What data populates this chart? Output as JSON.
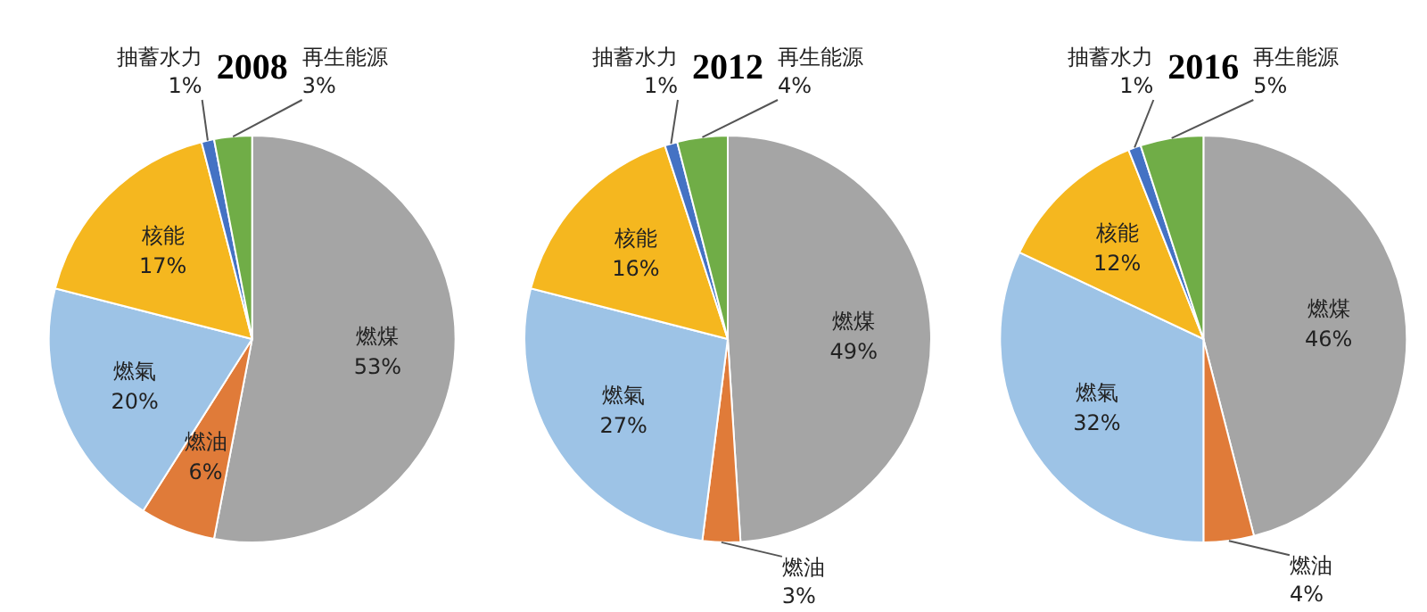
{
  "chart_data": [
    {
      "type": "pie",
      "title": "2008",
      "categories": [
        "燃煤",
        "燃油",
        "燃氣",
        "核能",
        "抽蓄水力",
        "再生能源"
      ],
      "values": [
        53,
        6,
        20,
        17,
        1,
        3
      ],
      "value_labels": [
        "53%",
        "6%",
        "20%",
        "17%",
        "1%",
        "3%"
      ],
      "colors": [
        "#a5a5a5",
        "#e07b39",
        "#9dc3e6",
        "#f5b71f",
        "#4472c4",
        "#70ad47"
      ]
    },
    {
      "type": "pie",
      "title": "2012",
      "categories": [
        "燃煤",
        "燃油",
        "燃氣",
        "核能",
        "抽蓄水力",
        "再生能源"
      ],
      "values": [
        49,
        3,
        27,
        16,
        1,
        4
      ],
      "value_labels": [
        "49%",
        "3%",
        "27%",
        "16%",
        "1%",
        "4%"
      ],
      "colors": [
        "#a5a5a5",
        "#e07b39",
        "#9dc3e6",
        "#f5b71f",
        "#4472c4",
        "#70ad47"
      ]
    },
    {
      "type": "pie",
      "title": "2016",
      "categories": [
        "燃煤",
        "燃油",
        "燃氣",
        "核能",
        "抽蓄水力",
        "再生能源"
      ],
      "values": [
        46,
        4,
        32,
        12,
        1,
        5
      ],
      "value_labels": [
        "46%",
        "4%",
        "32%",
        "12%",
        "1%",
        "5%"
      ],
      "colors": [
        "#a5a5a5",
        "#e07b39",
        "#9dc3e6",
        "#f5b71f",
        "#4472c4",
        "#70ad47"
      ]
    }
  ]
}
